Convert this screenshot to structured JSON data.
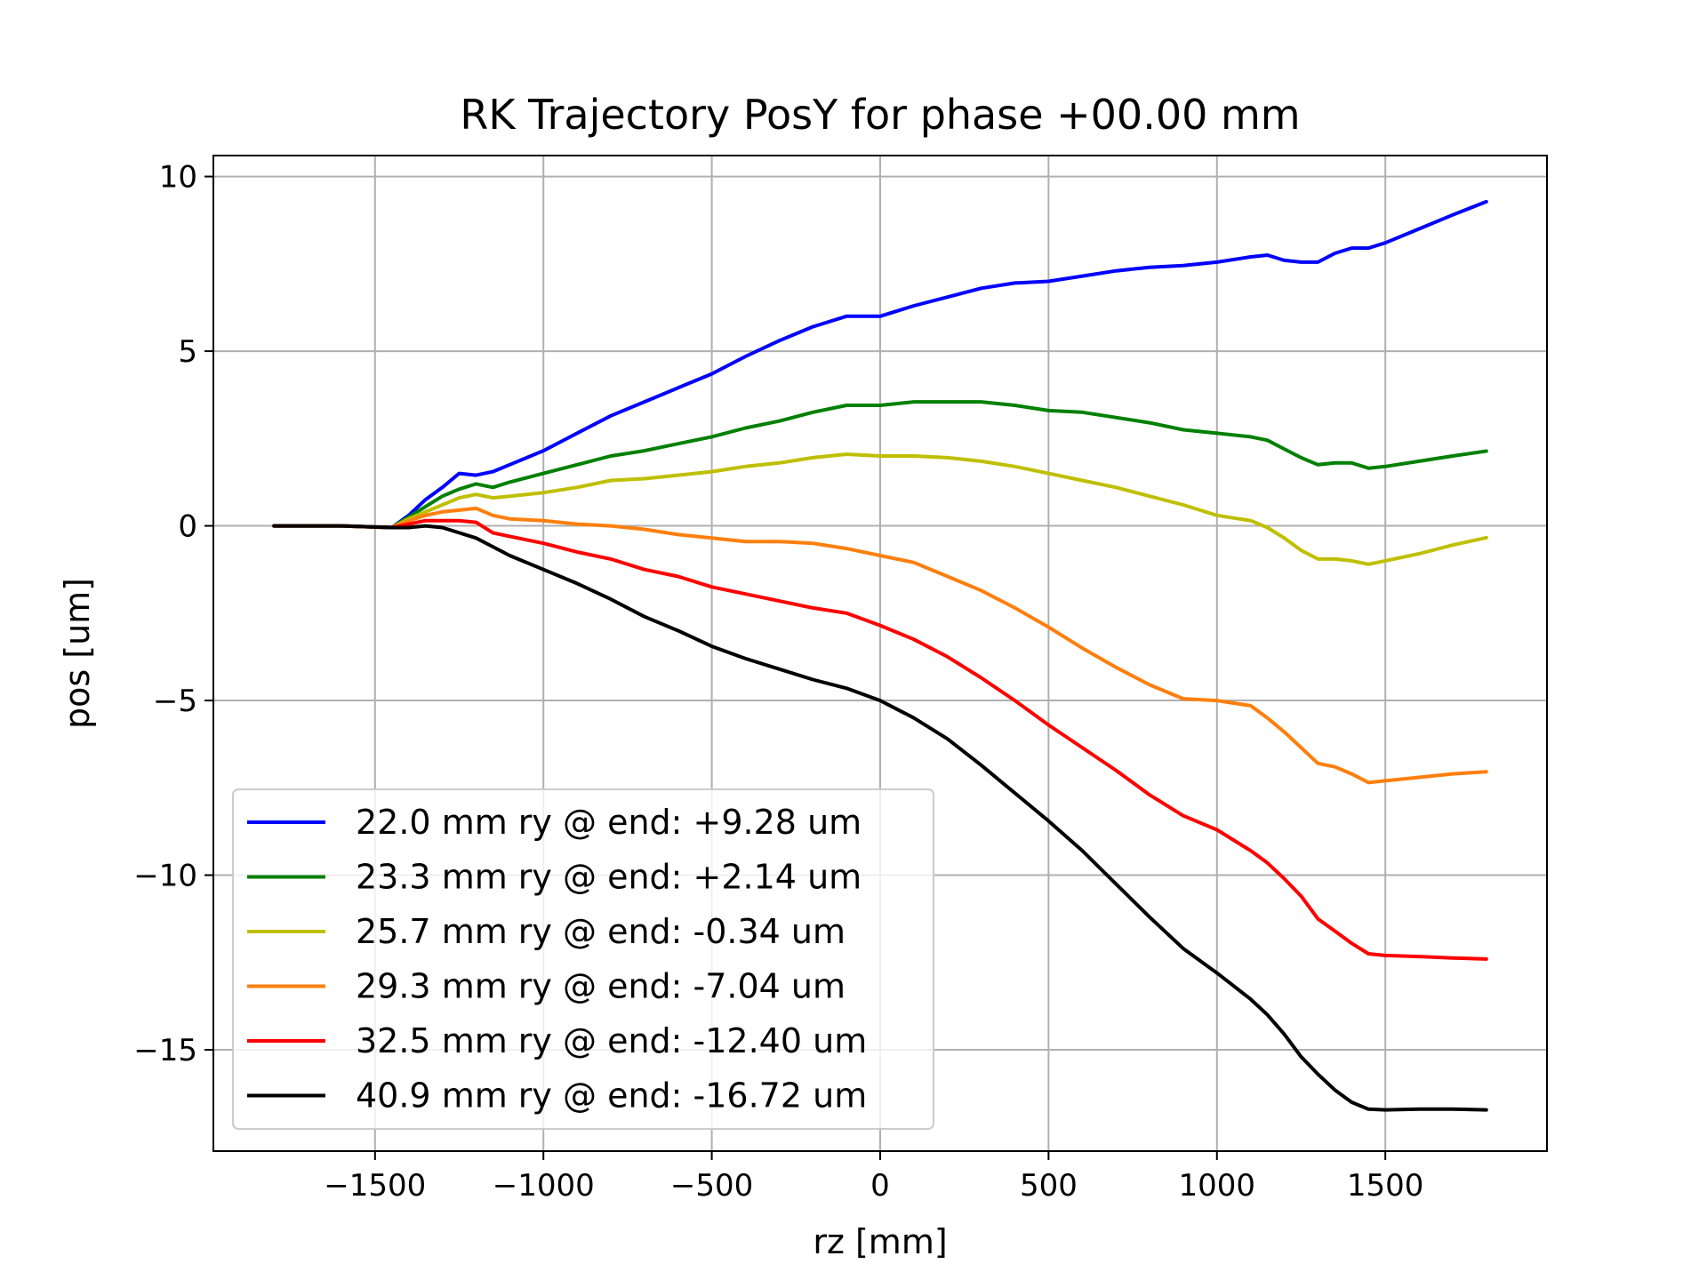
{
  "chart_data": {
    "type": "line",
    "title": "RK Trajectory PosY for phase +00.00 mm",
    "xlabel": "rz [mm]",
    "ylabel": "pos [um]",
    "xlim": [
      -1980,
      1980
    ],
    "ylim": [
      -17.9,
      10.6
    ],
    "xticks": [
      -1500,
      -1000,
      -500,
      0,
      500,
      1000,
      1500
    ],
    "xtick_labels": [
      "−1500",
      "−1000",
      "−500",
      "0",
      "500",
      "1000",
      "1500"
    ],
    "yticks": [
      10,
      5,
      0,
      -5,
      -10,
      -15
    ],
    "ytick_labels": [
      "10",
      "5",
      "0",
      "−5",
      "−10",
      "−15"
    ],
    "grid": true,
    "legend_position": "lower-left",
    "series": [
      {
        "name": "22.0 mm ry @ end: +9.28 um",
        "color": "#0000ff",
        "x": [
          -1800,
          -1600,
          -1450,
          -1400,
          -1350,
          -1300,
          -1250,
          -1200,
          -1150,
          -1100,
          -1000,
          -900,
          -800,
          -700,
          -600,
          -500,
          -400,
          -300,
          -200,
          -100,
          0,
          100,
          200,
          300,
          400,
          500,
          600,
          700,
          800,
          900,
          1000,
          1100,
          1150,
          1200,
          1250,
          1300,
          1350,
          1400,
          1450,
          1500,
          1600,
          1700,
          1800
        ],
        "y": [
          0,
          0,
          -0.05,
          0.3,
          0.75,
          1.1,
          1.5,
          1.45,
          1.55,
          1.75,
          2.15,
          2.65,
          3.15,
          3.55,
          3.95,
          4.35,
          4.85,
          5.3,
          5.7,
          6.0,
          6.0,
          6.3,
          6.55,
          6.8,
          6.95,
          7.0,
          7.15,
          7.3,
          7.4,
          7.45,
          7.55,
          7.7,
          7.75,
          7.6,
          7.55,
          7.55,
          7.8,
          7.95,
          7.95,
          8.1,
          8.5,
          8.9,
          9.28
        ]
      },
      {
        "name": "23.3 mm ry @ end: +2.14 um",
        "color": "#008000",
        "x": [
          -1800,
          -1600,
          -1450,
          -1400,
          -1350,
          -1300,
          -1250,
          -1200,
          -1150,
          -1100,
          -1000,
          -900,
          -800,
          -700,
          -600,
          -500,
          -400,
          -300,
          -200,
          -100,
          0,
          100,
          200,
          300,
          400,
          500,
          600,
          700,
          800,
          900,
          1000,
          1100,
          1150,
          1200,
          1250,
          1300,
          1350,
          1400,
          1450,
          1500,
          1600,
          1700,
          1800
        ],
        "y": [
          0,
          0,
          -0.05,
          0.25,
          0.55,
          0.85,
          1.05,
          1.2,
          1.1,
          1.25,
          1.5,
          1.75,
          2.0,
          2.15,
          2.35,
          2.55,
          2.8,
          3.0,
          3.25,
          3.45,
          3.45,
          3.55,
          3.55,
          3.55,
          3.45,
          3.3,
          3.25,
          3.1,
          2.95,
          2.75,
          2.65,
          2.55,
          2.45,
          2.2,
          1.95,
          1.75,
          1.8,
          1.8,
          1.65,
          1.7,
          1.85,
          2.0,
          2.14
        ]
      },
      {
        "name": "25.7 mm ry @ end: -0.34 um",
        "color": "#bfbf00",
        "x": [
          -1800,
          -1600,
          -1450,
          -1400,
          -1350,
          -1300,
          -1250,
          -1200,
          -1150,
          -1100,
          -1000,
          -900,
          -800,
          -700,
          -600,
          -500,
          -400,
          -300,
          -200,
          -100,
          0,
          100,
          200,
          300,
          400,
          500,
          600,
          700,
          800,
          900,
          1000,
          1100,
          1150,
          1200,
          1250,
          1300,
          1350,
          1400,
          1450,
          1500,
          1600,
          1700,
          1800
        ],
        "y": [
          0,
          0,
          -0.05,
          0.2,
          0.4,
          0.6,
          0.8,
          0.9,
          0.8,
          0.85,
          0.95,
          1.1,
          1.3,
          1.35,
          1.45,
          1.55,
          1.7,
          1.8,
          1.95,
          2.05,
          2.0,
          2.0,
          1.95,
          1.85,
          1.7,
          1.5,
          1.3,
          1.1,
          0.85,
          0.6,
          0.3,
          0.15,
          -0.05,
          -0.35,
          -0.7,
          -0.95,
          -0.95,
          -1.0,
          -1.1,
          -1.0,
          -0.8,
          -0.55,
          -0.34
        ]
      },
      {
        "name": "29.3 mm ry @ end: -7.04 um",
        "color": "#ff7f0e",
        "x": [
          -1800,
          -1600,
          -1450,
          -1400,
          -1350,
          -1300,
          -1250,
          -1200,
          -1150,
          -1100,
          -1000,
          -900,
          -800,
          -700,
          -600,
          -500,
          -400,
          -300,
          -200,
          -100,
          0,
          100,
          200,
          300,
          400,
          500,
          600,
          700,
          800,
          900,
          1000,
          1100,
          1150,
          1200,
          1250,
          1300,
          1350,
          1400,
          1450,
          1500,
          1600,
          1700,
          1800
        ],
        "y": [
          0,
          0,
          -0.05,
          0.15,
          0.3,
          0.4,
          0.45,
          0.5,
          0.3,
          0.2,
          0.15,
          0.05,
          0.0,
          -0.1,
          -0.25,
          -0.35,
          -0.45,
          -0.45,
          -0.5,
          -0.65,
          -0.85,
          -1.05,
          -1.45,
          -1.85,
          -2.35,
          -2.9,
          -3.5,
          -4.05,
          -4.55,
          -4.95,
          -5.0,
          -5.15,
          -5.5,
          -5.9,
          -6.35,
          -6.8,
          -6.9,
          -7.1,
          -7.35,
          -7.3,
          -7.2,
          -7.1,
          -7.04
        ]
      },
      {
        "name": "32.5 mm ry @ end: -12.40 um",
        "color": "#ff0000",
        "x": [
          -1800,
          -1600,
          -1450,
          -1400,
          -1350,
          -1300,
          -1250,
          -1200,
          -1150,
          -1100,
          -1000,
          -900,
          -800,
          -700,
          -600,
          -500,
          -400,
          -300,
          -200,
          -100,
          0,
          100,
          200,
          300,
          400,
          500,
          600,
          700,
          800,
          900,
          1000,
          1100,
          1150,
          1200,
          1250,
          1300,
          1350,
          1400,
          1450,
          1500,
          1600,
          1700,
          1800
        ],
        "y": [
          0,
          0,
          -0.05,
          0.05,
          0.15,
          0.15,
          0.15,
          0.1,
          -0.2,
          -0.3,
          -0.5,
          -0.75,
          -0.95,
          -1.25,
          -1.45,
          -1.75,
          -1.95,
          -2.15,
          -2.35,
          -2.5,
          -2.85,
          -3.25,
          -3.75,
          -4.35,
          -5.0,
          -5.7,
          -6.35,
          -7.0,
          -7.7,
          -8.3,
          -8.7,
          -9.3,
          -9.65,
          -10.1,
          -10.6,
          -11.25,
          -11.6,
          -11.95,
          -12.25,
          -12.3,
          -12.33,
          -12.37,
          -12.4
        ]
      },
      {
        "name": "40.9 mm ry @ end: -16.72 um",
        "color": "#000000",
        "x": [
          -1800,
          -1600,
          -1450,
          -1400,
          -1350,
          -1300,
          -1250,
          -1200,
          -1150,
          -1100,
          -1000,
          -900,
          -800,
          -700,
          -600,
          -500,
          -400,
          -300,
          -200,
          -100,
          0,
          100,
          200,
          300,
          400,
          500,
          600,
          700,
          800,
          900,
          1000,
          1100,
          1150,
          1200,
          1250,
          1300,
          1350,
          1400,
          1450,
          1500,
          1600,
          1700,
          1800
        ],
        "y": [
          0,
          0,
          -0.05,
          -0.05,
          0.0,
          -0.05,
          -0.2,
          -0.35,
          -0.6,
          -0.85,
          -1.25,
          -1.65,
          -2.1,
          -2.6,
          -3.0,
          -3.45,
          -3.8,
          -4.1,
          -4.4,
          -4.65,
          -5.0,
          -5.5,
          -6.1,
          -6.85,
          -7.65,
          -8.45,
          -9.3,
          -10.25,
          -11.2,
          -12.1,
          -12.8,
          -13.55,
          -14.0,
          -14.55,
          -15.2,
          -15.7,
          -16.15,
          -16.5,
          -16.7,
          -16.72,
          -16.7,
          -16.7,
          -16.72
        ]
      }
    ]
  }
}
